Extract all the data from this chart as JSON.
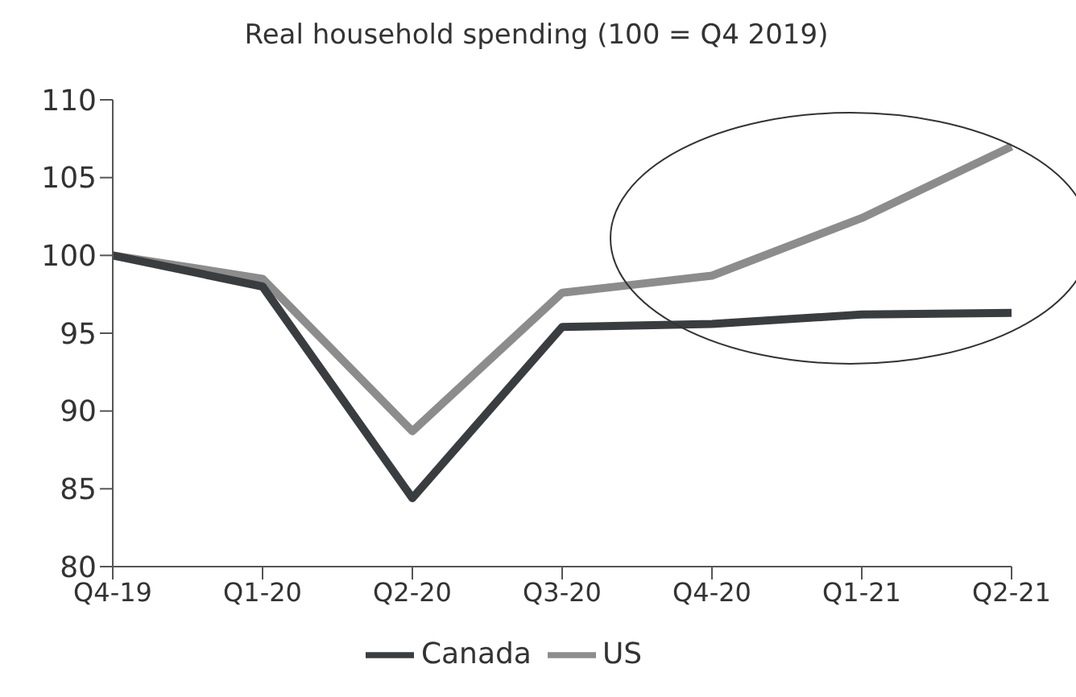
{
  "chart_data": {
    "type": "line",
    "title": "Real household spending (100 = Q4 2019)",
    "categories": [
      "Q4-19",
      "Q1-20",
      "Q2-20",
      "Q3-20",
      "Q4-20",
      "Q1-21",
      "Q2-21"
    ],
    "series": [
      {
        "name": "US",
        "color": "#8c8c8c",
        "values": [
          100,
          98.5,
          88.7,
          97.6,
          98.7,
          102.4,
          107.0
        ]
      },
      {
        "name": "Canada",
        "color": "#3a3d40",
        "values": [
          100,
          98.0,
          84.4,
          95.4,
          95.6,
          96.2,
          96.3
        ]
      }
    ],
    "ylim": [
      80,
      110
    ],
    "yticks": [
      80,
      85,
      90,
      95,
      100,
      105,
      110
    ],
    "grid": false,
    "legend": "bottom",
    "marker": "none",
    "line_style": "solid"
  }
}
